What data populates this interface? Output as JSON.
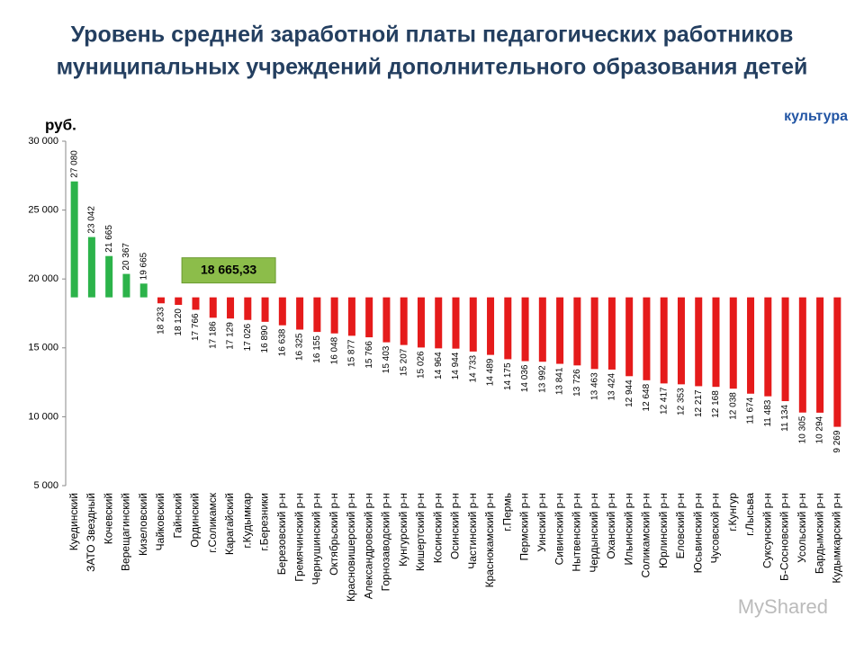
{
  "chart_data": {
    "type": "bar",
    "title": [
      "Уровень средней заработной платы педагогических работников",
      "муниципальных учреждений дополнительного образования детей"
    ],
    "y_label": "руб.",
    "annotation": "культура",
    "watermark": "MyShared",
    "categories": [
      "Куединский",
      "ЗАТО Звездный",
      "Кочевский",
      "Верещагинский",
      "Кизеловский",
      "Чайковский",
      "Гайнский",
      "Ординский",
      "г.Соликамск",
      "Карагайский",
      "г.Кудымкар",
      "г.Березники",
      "Березовский р-н",
      "Гремячинский р-н",
      "Чернушинский р-н",
      "Октябрьский р-н",
      "Красновишерский р-н",
      "Александровский р-н",
      "Горнозаводский р-н",
      "Кунгурский р-н",
      "Кишертский р-н",
      "Косинский р-н",
      "Осинский р-н",
      "Частинский р-н",
      "Краснокамский р-н",
      "г.Пермь",
      "Пермский р-н",
      "Уинский р-н",
      "Сивинский р-н",
      "Нытвенский р-н",
      "Чердынский р-н",
      "Оханский р-н",
      "Ильинский р-н",
      "Соликамский р-н",
      "Юрлинский р-н",
      "Еловский р-н",
      "Юсьвинский р-н",
      "Чусовской р-н",
      "г.Кунгур",
      "г.Лысьва",
      "Суксунский р-н",
      "Б-Сосновский р-н",
      "Усольский р-н",
      "Бардымский р-н",
      "Кудымкарский р-н"
    ],
    "values": [
      27080,
      23042,
      21665,
      20367,
      19665,
      18233,
      18120,
      17766,
      17186,
      17129,
      17026,
      16890,
      16638,
      16325,
      16155,
      16048,
      15877,
      15766,
      15403,
      15207,
      15026,
      14964,
      14944,
      14733,
      14489,
      14175,
      14036,
      13992,
      13841,
      13726,
      13463,
      13424,
      12944,
      12648,
      12417,
      12353,
      12217,
      12168,
      12038,
      11674,
      11483,
      11134,
      10305,
      10294,
      9269
    ],
    "value_labels": [
      "27 080",
      "23 042",
      "21 665",
      "20 367",
      "19 665",
      "18 233",
      "18 120",
      "17 766",
      "17 186",
      "17 129",
      "17 026",
      "16 890",
      "16 638",
      "16 325",
      "16 155",
      "16 048",
      "15 877",
      "15 766",
      "15 403",
      "15 207",
      "15 026",
      "14 964",
      "14 944",
      "14 733",
      "14 489",
      "14 175",
      "14 036",
      "13 992",
      "13 841",
      "13 726",
      "13 463",
      "13 424",
      "12 944",
      "12 648",
      "12 417",
      "12 353",
      "12 217",
      "12 168",
      "12 038",
      "11 674",
      "11 483",
      "11 134",
      "10 305",
      "10 294",
      "9 269"
    ],
    "average": {
      "value": 18665.33,
      "label": "18 665,33"
    },
    "above_color": "#2cb34a",
    "below_color": "#e51b1b",
    "average_box_color": "#8cbd4a",
    "ylim": [
      5000,
      30000
    ],
    "yticks": [
      {
        "value": 5000,
        "label": "5 000"
      },
      {
        "value": 10000,
        "label": "10 000"
      },
      {
        "value": 15000,
        "label": "15 000"
      },
      {
        "value": 20000,
        "label": "20 000"
      },
      {
        "value": 25000,
        "label": "25 000"
      },
      {
        "value": 30000,
        "label": "30 000"
      }
    ]
  }
}
